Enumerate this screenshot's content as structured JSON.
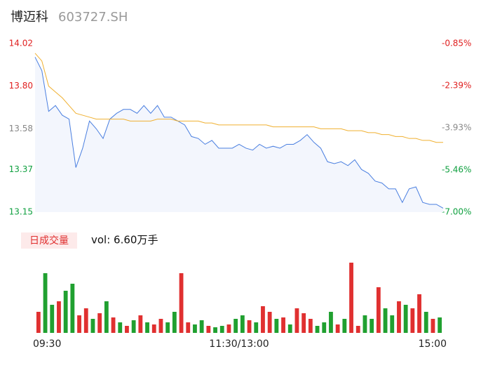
{
  "chart_data": [
    {
      "type": "line",
      "title": "博迈科",
      "subtitle": "603727.SH",
      "x": [
        0,
        4,
        8,
        12,
        16,
        20,
        24,
        28,
        32,
        36,
        40,
        44,
        48,
        52,
        56,
        60,
        64,
        68,
        72,
        76,
        80,
        84,
        88,
        92,
        96,
        100,
        104,
        108,
        112,
        116,
        120,
        124,
        128,
        132,
        136,
        140,
        144,
        148,
        152,
        156,
        160,
        164,
        168,
        172,
        176,
        180,
        184,
        188,
        192,
        196,
        200,
        204,
        208,
        212,
        216,
        220,
        224,
        228,
        232,
        236,
        240
      ],
      "xlim": [
        0,
        240
      ],
      "series": [
        {
          "color": "#4a7fe0",
          "values": [
            13.95,
            13.88,
            13.67,
            13.7,
            13.65,
            13.63,
            13.38,
            13.48,
            13.62,
            13.58,
            13.53,
            13.63,
            13.66,
            13.68,
            13.68,
            13.66,
            13.7,
            13.66,
            13.7,
            13.64,
            13.64,
            13.62,
            13.6,
            13.54,
            13.53,
            13.5,
            13.52,
            13.48,
            13.48,
            13.48,
            13.5,
            13.48,
            13.47,
            13.5,
            13.48,
            13.49,
            13.48,
            13.5,
            13.5,
            13.52,
            13.55,
            13.51,
            13.48,
            13.41,
            13.4,
            13.41,
            13.39,
            13.42,
            13.37,
            13.35,
            13.31,
            13.3,
            13.27,
            13.27,
            13.2,
            13.27,
            13.28,
            13.2,
            13.19,
            13.19,
            13.17
          ]
        },
        {
          "color": "#f0b030",
          "values": [
            13.97,
            13.93,
            13.8,
            13.77,
            13.74,
            13.7,
            13.66,
            13.65,
            13.64,
            13.63,
            13.63,
            13.63,
            13.63,
            13.63,
            13.62,
            13.62,
            13.62,
            13.62,
            13.63,
            13.63,
            13.63,
            13.62,
            13.62,
            13.62,
            13.62,
            13.61,
            13.61,
            13.6,
            13.6,
            13.6,
            13.6,
            13.6,
            13.6,
            13.6,
            13.6,
            13.59,
            13.59,
            13.59,
            13.59,
            13.59,
            13.59,
            13.59,
            13.58,
            13.58,
            13.58,
            13.58,
            13.57,
            13.57,
            13.57,
            13.56,
            13.56,
            13.55,
            13.55,
            13.54,
            13.54,
            13.53,
            13.53,
            13.52,
            13.52,
            13.51,
            13.51
          ]
        }
      ],
      "ylim": [
        13.15,
        14.02
      ],
      "yticks": [
        14.02,
        {
          "value": 13.8,
          "label": "13.80"
        },
        13.58,
        13.37,
        13.15
      ],
      "ytick_colors": [
        "#e02020",
        "#e02020",
        "#888888",
        "#10a040",
        "#10a040"
      ],
      "y2lim": [
        -7.0,
        -0.85
      ],
      "y2ticks": [
        {
          "value": -0.85,
          "label": "-0.85%"
        },
        {
          "value": -2.39,
          "label": "-2.39%"
        },
        {
          "value": -3.93,
          "label": "-3.93%"
        },
        {
          "value": -5.46,
          "label": "-5.46%"
        },
        {
          "value": -7.0,
          "label": "-7.00%"
        }
      ],
      "y2tick_colors": [
        "#e02020",
        "#e02020",
        "#888888",
        "#10a040",
        "#10a040"
      ]
    },
    {
      "type": "bar",
      "title": "日成交量",
      "subtitle": "vol: 6.60万手",
      "values": [
        30,
        85,
        40,
        45,
        60,
        70,
        25,
        35,
        20,
        28,
        45,
        22,
        15,
        10,
        18,
        25,
        15,
        12,
        20,
        15,
        30,
        85,
        15,
        12,
        18,
        10,
        8,
        10,
        12,
        20,
        25,
        18,
        15,
        38,
        30,
        20,
        22,
        12,
        35,
        28,
        20,
        10,
        15,
        30,
        12,
        20,
        100,
        10,
        25,
        20,
        65,
        35,
        25,
        45,
        40,
        35,
        55,
        30,
        20,
        22
      ],
      "colors": [
        "#e03030",
        "#20a030",
        "#20a030",
        "#e03030",
        "#20a030",
        "#20a030",
        "#e03030",
        "#e03030",
        "#20a030",
        "#e03030",
        "#20a030",
        "#e03030",
        "#20a030",
        "#e03030",
        "#20a030",
        "#e03030",
        "#20a030",
        "#e03030",
        "#e03030",
        "#20a030",
        "#20a030",
        "#e03030",
        "#e03030",
        "#20a030",
        "#20a030",
        "#e03030",
        "#20a030",
        "#20a030",
        "#e03030",
        "#20a030",
        "#20a030",
        "#e03030",
        "#20a030",
        "#e03030",
        "#e03030",
        "#20a030",
        "#e03030",
        "#20a030",
        "#e03030",
        "#e03030",
        "#e03030",
        "#20a030",
        "#20a030",
        "#20a030",
        "#e03030",
        "#20a030",
        "#e03030",
        "#e03030",
        "#20a030",
        "#20a030",
        "#e03030",
        "#20a030",
        "#20a030",
        "#e03030",
        "#20a030",
        "#e03030",
        "#e03030",
        "#20a030",
        "#e03030",
        "#20a030"
      ],
      "ylim": [
        0,
        100
      ],
      "xlim": [
        0,
        240
      ],
      "xticks": [
        {
          "value": 0,
          "label": "09:30"
        },
        {
          "value": 120,
          "label": "11:30/13:00"
        },
        {
          "value": 240,
          "label": "15:00"
        }
      ]
    }
  ]
}
